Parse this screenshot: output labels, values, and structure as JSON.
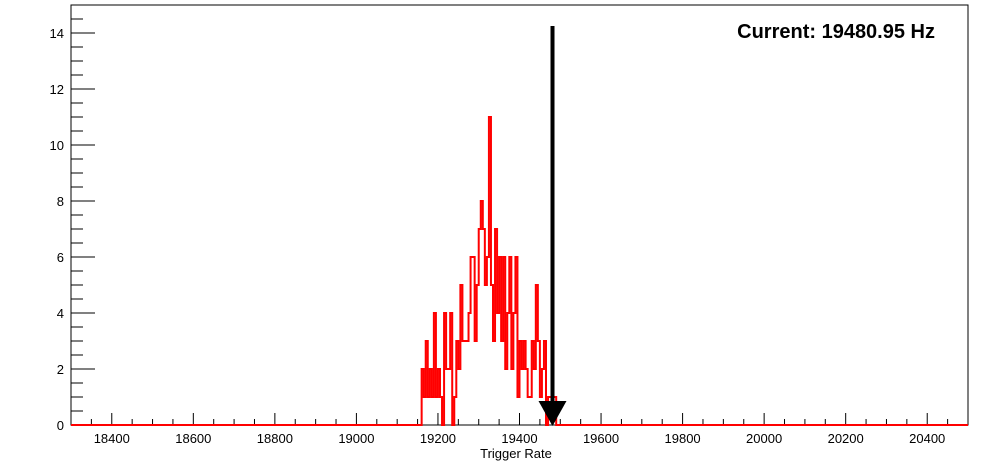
{
  "chart_data": {
    "type": "histogram",
    "title": "",
    "xlabel": "Trigger Rate",
    "ylabel": "",
    "xlim": [
      18300,
      20500
    ],
    "ylim": [
      0,
      15
    ],
    "xticks": [
      18400,
      18600,
      18800,
      19000,
      19200,
      19400,
      19600,
      19800,
      20000,
      20200,
      20400
    ],
    "xtick_labels": [
      "18400",
      "18600",
      "18800",
      "19000",
      "19200",
      "19400",
      "19600",
      "19800",
      "20000",
      "20200",
      "20400"
    ],
    "yticks": [
      0,
      2,
      4,
      6,
      8,
      10,
      12,
      14
    ],
    "ytick_labels": [
      "0",
      "2",
      "4",
      "6",
      "8",
      "10",
      "12",
      "14"
    ],
    "grid": false,
    "legend": "none",
    "series": [
      {
        "color": "#ff0000",
        "bin_width": 5,
        "x_start": 19160,
        "counts": [
          2,
          1,
          3,
          1,
          2,
          1,
          4,
          1,
          2,
          1,
          0,
          4,
          2,
          2,
          4,
          0,
          1,
          3,
          2,
          5,
          3,
          3,
          3,
          4,
          6,
          6,
          3,
          5,
          7,
          8,
          7,
          5,
          6,
          11,
          5,
          3,
          7,
          4,
          6,
          3,
          6,
          2,
          4,
          6,
          2,
          4,
          6,
          1,
          3,
          2,
          3,
          2,
          1,
          1,
          3,
          2,
          5,
          3,
          1,
          2,
          3,
          0,
          1,
          1,
          1,
          1
        ]
      }
    ],
    "marker": {
      "label": "Current: 19480.95 Hz",
      "x": 19480.95,
      "color": "#000000",
      "style": "downward-arrow"
    }
  }
}
